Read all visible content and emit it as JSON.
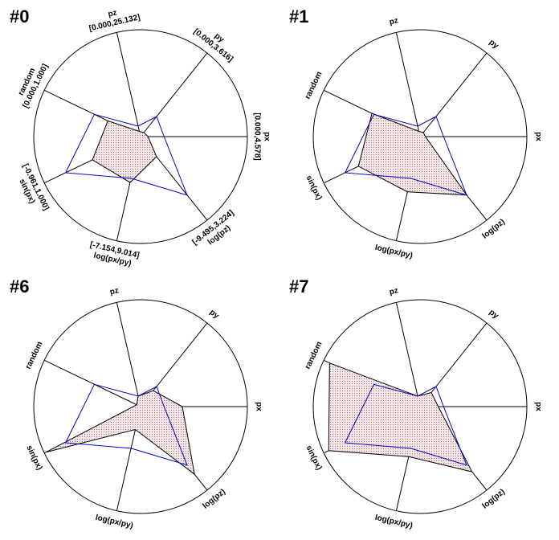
{
  "chart_data": [
    {
      "type": "radar",
      "title": "#0",
      "axes": [
        {
          "label": "px",
          "range_label": "[0.000,4.578]",
          "min": 0,
          "max": 4.578
        },
        {
          "label": "py",
          "range_label": "[0.000,3.616]",
          "min": 0,
          "max": 3.616
        },
        {
          "label": "pz",
          "range_label": "[0.000,25.132]",
          "min": 0,
          "max": 25.132
        },
        {
          "label": "random",
          "range_label": "[0.000,1.000]",
          "min": 0,
          "max": 1
        },
        {
          "label": "sin(px)",
          "range_label": "[-0.961,1.000]",
          "min": -0.961,
          "max": 1
        },
        {
          "label": "log(px/py)",
          "range_label": "[-7.154,9.014]",
          "min": -7.154,
          "max": 9.014
        },
        {
          "label": "log(pz)",
          "range_label": "[-9.495,3.224]",
          "min": -9.495,
          "max": 3.224
        }
      ],
      "series": [
        {
          "color": "#000000",
          "fill": "#e8c8c8",
          "values": [
            0.32,
            0.18,
            1.26,
            0.34,
            0.02,
            -0.04,
            -6.44
          ]
        },
        {
          "color": "#0000cc",
          "values": [
            1.01,
            0.87,
            2.51,
            0.48,
            0.568,
            -0.687,
            -0.592
          ]
        }
      ]
    },
    {
      "type": "radar",
      "title": "#1",
      "axes": [
        {
          "label": "px",
          "min": 0,
          "max": 4.578
        },
        {
          "label": "py",
          "min": 0,
          "max": 3.616
        },
        {
          "label": "pz",
          "min": 0,
          "max": 25.132
        },
        {
          "label": "random",
          "min": 0,
          "max": 1
        },
        {
          "label": "sin(px)",
          "min": -0.961,
          "max": 1
        },
        {
          "label": "log(px/py)",
          "min": -7.154,
          "max": 9.014
        },
        {
          "label": "log(pz)",
          "min": -9.495,
          "max": 3.224
        }
      ],
      "series": [
        {
          "color": "#000000",
          "fill": "#e8c8c8",
          "values": [
            0.23,
            0.18,
            1.26,
            0.5,
            0.294,
            1.41,
            -0.59
          ]
        },
        {
          "color": "#0000cc",
          "values": [
            1.01,
            0.87,
            2.51,
            0.48,
            0.568,
            -0.687,
            -0.592
          ]
        }
      ]
    },
    {
      "type": "radar",
      "title": "#6",
      "axes": [
        {
          "label": "px",
          "min": 0,
          "max": 4.578
        },
        {
          "label": "py",
          "min": 0,
          "max": 3.616
        },
        {
          "label": "pz",
          "min": 0,
          "max": 25.132
        },
        {
          "label": "random",
          "min": 0,
          "max": 1
        },
        {
          "label": "sin(px)",
          "min": -0.961,
          "max": 1
        },
        {
          "label": "log(px/py)",
          "min": -7.154,
          "max": 9.014
        },
        {
          "label": "log(pz)",
          "min": -9.495,
          "max": 3.224
        }
      ],
      "series": [
        {
          "color": "#000000",
          "fill": "#e8c8c8",
          "values": [
            1.79,
            0.69,
            2.51,
            0.04,
            0.961,
            -3.6,
            0.81
          ]
        },
        {
          "color": "#0000cc",
          "values": [
            1.01,
            0.87,
            2.51,
            0.48,
            0.568,
            -0.687,
            -0.592
          ]
        }
      ]
    },
    {
      "type": "radar",
      "title": "#7",
      "axes": [
        {
          "label": "px",
          "min": 0,
          "max": 4.578
        },
        {
          "label": "py",
          "min": 0,
          "max": 3.616
        },
        {
          "label": "pz",
          "min": 0,
          "max": 25.132
        },
        {
          "label": "random",
          "min": 0,
          "max": 1
        },
        {
          "label": "sin(px)",
          "min": -0.961,
          "max": 1
        },
        {
          "label": "log(px/py)",
          "min": -7.154,
          "max": 9.014
        },
        {
          "label": "log(pz)",
          "min": -9.495,
          "max": 3.224
        }
      ],
      "series": [
        {
          "color": "#000000",
          "fill": "#e8c8c8",
          "values": [
            0.78,
            0.61,
            2.51,
            0.94,
            0.902,
            0.61,
            0.43
          ]
        },
        {
          "color": "#0000cc",
          "values": [
            1.01,
            0.87,
            2.51,
            0.48,
            0.568,
            -0.687,
            -0.592
          ]
        }
      ]
    }
  ]
}
